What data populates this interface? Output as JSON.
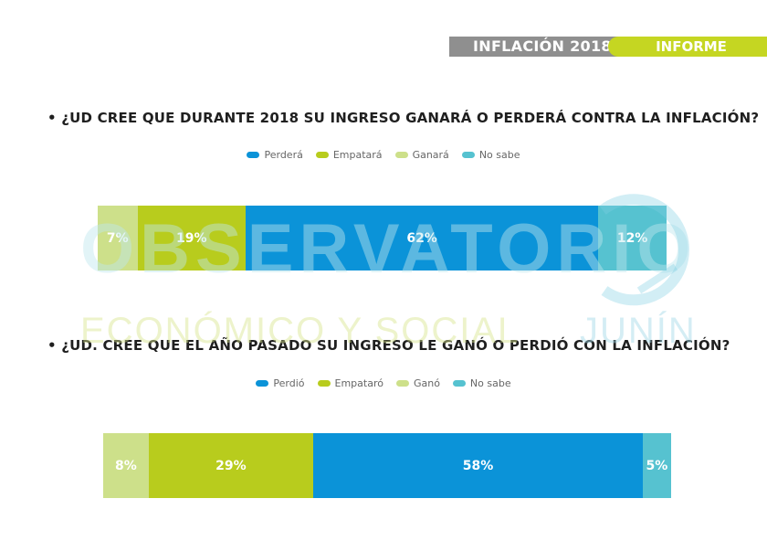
{
  "header": {
    "section_title": "INFLACIÓN 2018",
    "tag": "INFORME"
  },
  "watermark": {
    "line1": "OBSERVATORIO",
    "line2": "ECONÓMICO Y SOCIAL",
    "line3": "JUNÍN"
  },
  "colors": {
    "perdio": "#0b93d8",
    "empato": "#b8cc1d",
    "gano": "#cde08a",
    "no_sabe": "#56c2d0"
  },
  "chart_data": [
    {
      "type": "bar",
      "title": "• ¿UD CREE QUE DURANTE 2018 SU INGRESO GANARÁ O PERDERÁ CONTRA LA INFLACIÓN?",
      "legend": [
        "Perderá",
        "Empatará",
        "Ganará",
        "No sabe"
      ],
      "segments": [
        {
          "name": "Ganará",
          "value": 7,
          "label": "7%",
          "color_key": "gano"
        },
        {
          "name": "Empatará",
          "value": 19,
          "label": "19%",
          "color_key": "empato"
        },
        {
          "name": "Perderá",
          "value": 62,
          "label": "62%",
          "color_key": "perdio"
        },
        {
          "name": "No sabe",
          "value": 12,
          "label": "12%",
          "color_key": "no_sabe"
        }
      ]
    },
    {
      "type": "bar",
      "title": "• ¿UD. CREE QUE EL AÑO PASADO SU INGRESO LE GANÓ O PERDIÓ CON LA INFLACIÓN?",
      "legend": [
        "Perdió",
        "Empataró",
        "Ganó",
        "No sabe"
      ],
      "segments": [
        {
          "name": "Ganó",
          "value": 8,
          "label": "8%",
          "color_key": "gano"
        },
        {
          "name": "Empataró",
          "value": 29,
          "label": "29%",
          "color_key": "empato"
        },
        {
          "name": "Perdió",
          "value": 58,
          "label": "58%",
          "color_key": "perdio"
        },
        {
          "name": "No sabe",
          "value": 5,
          "label": "5%",
          "color_key": "no_sabe"
        }
      ]
    }
  ]
}
